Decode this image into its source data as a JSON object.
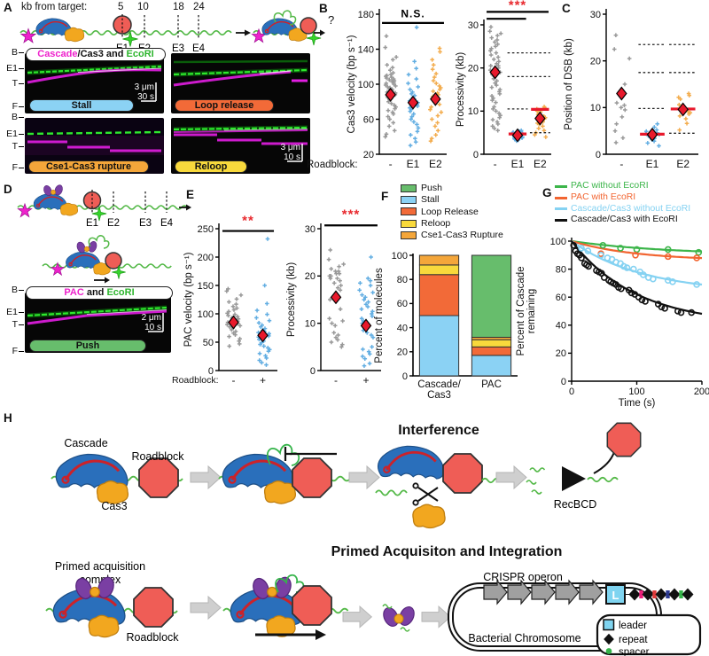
{
  "colors": {
    "magenta": "#ee22cc",
    "ecoRI_green": "#2db52d",
    "dna_green": "#54b948",
    "stall": "#8bd2f4",
    "loop_release": "#f26a38",
    "reloop": "#f8d93c",
    "rupture": "#f4a63a",
    "push": "#67bd6c",
    "mean_red": "#e8192c"
  },
  "panelA": {
    "label": "A",
    "header": "kb from target:",
    "kb_marks": [
      "5",
      "10",
      "18",
      "24"
    ],
    "sites": [
      "E1",
      "E2",
      "E3",
      "E4"
    ],
    "question": "?",
    "kymo_title": {
      "part1": "Cascade",
      "part2": "/Cas3 and ",
      "part3": "EcoRI"
    },
    "row_labels": [
      "B",
      "E1",
      "T",
      "F"
    ],
    "kymos": [
      {
        "name": "Stall"
      },
      {
        "name": "Loop release"
      },
      {
        "name": "Cse1-Cas3 rupture"
      },
      {
        "name": "Reloop"
      }
    ],
    "scale1": {
      "dist": "3 μm",
      "time": "30 s"
    },
    "scale2": {
      "dist": "3 μm",
      "time": "10 s"
    }
  },
  "panelB": {
    "label": "B",
    "roadblock_label": "Roadblock:"
  },
  "panelC": {
    "label": "C"
  },
  "panelD": {
    "label": "D",
    "sites": [
      "E1",
      "E2",
      "E3",
      "E4"
    ],
    "kymo_title": {
      "part1": "PAC",
      "part2": " and ",
      "part3": "EcoRI"
    },
    "row_labels": [
      "B",
      "E1",
      "T",
      "F"
    ],
    "kymo_name": "Push",
    "scale": {
      "dist": "2 μm",
      "time": "10 s"
    }
  },
  "panelE": {
    "label": "E",
    "roadblock_label": "Roadblock:"
  },
  "panelF": {
    "label": "F"
  },
  "panelG": {
    "label": "G"
  },
  "panelH": {
    "label": "H",
    "row1": {
      "cascade": "Cascade",
      "cas3": "Cas3",
      "roadblock": "Roadblock",
      "title": "Interference",
      "recbcd": "RecBCD"
    },
    "row2": {
      "complex1": "Primed acquisition",
      "complex2": "complex",
      "roadblock": "Roadblock",
      "title": "Primed Acquisiton and Integration",
      "operon": "CRISPR operon",
      "chromosome": "Bacterial Chromosome",
      "leader_letter": "L",
      "legend": [
        {
          "label": "leader"
        },
        {
          "label": "repeat"
        },
        {
          "label": "spacer"
        }
      ]
    }
  },
  "chart_data": [
    {
      "id": "cas3_velocity",
      "type": "scatter",
      "ylabel": "Cas3 velocity (bp s⁻¹)",
      "ylim": [
        20,
        180
      ],
      "yticks": [
        20,
        60,
        100,
        140,
        180
      ],
      "categories": [
        "-",
        "E1",
        "E2"
      ],
      "colors": [
        "#999999",
        "#63aee2",
        "#f3ad4f"
      ],
      "mean_color": "#e8192c",
      "groups": [
        [
          155,
          142,
          131,
          128,
          122,
          119,
          116,
          113,
          111,
          110,
          109,
          108,
          107,
          106,
          105,
          104,
          103,
          102,
          101,
          100,
          99,
          98,
          97,
          96,
          95,
          94,
          93,
          92,
          91,
          90,
          89,
          88,
          87,
          86,
          85,
          84,
          82,
          80,
          78,
          76,
          74,
          72,
          70,
          68,
          66,
          63,
          60,
          56,
          52,
          47,
          43,
          40
        ],
        [
          165,
          126,
          118,
          111,
          106,
          101,
          97,
          94,
          91,
          89,
          87,
          85,
          83,
          81,
          79,
          77,
          75,
          73,
          71,
          69,
          66,
          63,
          60,
          57,
          54,
          50,
          46,
          42,
          38,
          34,
          30
        ],
        [
          141,
          137,
          128,
          122,
          117,
          112,
          108,
          104,
          101,
          98,
          96,
          94,
          92,
          90,
          88,
          86,
          84,
          82,
          80,
          77,
          74,
          71,
          68,
          64,
          60,
          56,
          52,
          47,
          42,
          38,
          35
        ]
      ],
      "means": [
        88,
        79,
        83
      ],
      "sig": {
        "text": "N.S.",
        "color": "#000000",
        "font": 12,
        "text_y": 176.5,
        "bars": [
          {
            "from": 0,
            "to": 2,
            "y": 170
          }
        ]
      }
    },
    {
      "id": "processivity_roadblock",
      "type": "scatter",
      "ylabel": "Processivity (kb)",
      "ylim": [
        0,
        30
      ],
      "yticks": [
        0,
        10,
        20,
        30
      ],
      "categories": [
        "-",
        "E1",
        "E2"
      ],
      "colors": [
        "#999999",
        "#63aee2",
        "#f3ad4f"
      ],
      "mean_color": "#e8192c",
      "groups": [
        [
          29.5,
          28.5,
          28,
          27.5,
          27,
          26.5,
          26,
          25.5,
          25,
          24.5,
          24,
          23.5,
          23,
          22.5,
          22,
          21.5,
          21,
          20.5,
          20.5,
          20,
          19.5,
          19,
          18.5,
          18,
          17.5,
          17,
          16.5,
          16,
          15.5,
          15,
          14.5,
          14,
          13.5,
          13,
          12.5,
          12,
          11,
          10.5,
          10,
          9.5,
          9,
          8.5,
          8,
          7.5,
          7,
          6.5,
          6,
          5.5
        ],
        [
          5.5,
          5.3,
          5.2,
          5.1,
          5,
          4.9,
          4.8,
          4.7,
          4.6,
          4.5,
          4.4,
          4.3,
          4.2,
          4.1,
          4,
          3.9,
          3.8,
          3.7,
          3.6,
          3.5,
          3.3,
          3.1
        ],
        [
          11,
          10.8,
          10.5,
          10.3,
          10,
          9.8,
          9.5,
          9.2,
          9,
          8.8,
          8.5,
          8.2,
          8,
          7.8,
          7.5,
          7.2,
          7,
          6.5,
          6,
          5.5,
          5,
          4.5,
          4
        ]
      ],
      "means": [
        19,
        4.4,
        8.3
      ],
      "mean_lines": [
        null,
        4.7,
        10.4
      ],
      "dashes": [
        [],
        [
          23.5,
          18,
          10.5
        ],
        [
          23.5,
          18,
          5
        ]
      ],
      "sig": {
        "text": "***",
        "color": "#e8282d",
        "font": 15,
        "text_y": 33.6,
        "bars": [
          {
            "from": 0,
            "to": 1,
            "y": 31.4
          },
          {
            "from": 0,
            "to": 2,
            "y": 33
          }
        ]
      }
    },
    {
      "id": "dsb_position",
      "type": "scatter",
      "ylabel": "Position of DSB (kb)",
      "ylim": [
        0,
        30
      ],
      "yticks": [
        0,
        10,
        20,
        30
      ],
      "categories": [
        "-",
        "E1",
        "E2"
      ],
      "colors": [
        "#999999",
        "#63aee2",
        "#f3ad4f"
      ],
      "mean_color": "#e8192c",
      "groups": [
        [
          25.5,
          22.5,
          20.5,
          15,
          11,
          10.5,
          10,
          9.5,
          8,
          6.5,
          5,
          3.5,
          2.5
        ],
        [
          6.5,
          5.8,
          5.2,
          4.9,
          4.6,
          4.4,
          4.2,
          4,
          3.8,
          3.6,
          3.4,
          3.1,
          2.8,
          2.4,
          1.8
        ],
        [
          13,
          12.6,
          12.2,
          11.8,
          10.6,
          10.2,
          9.9,
          9.6,
          9.4,
          9.1,
          8.9,
          8.6,
          8.2,
          7.6,
          6.6,
          5.2
        ]
      ],
      "means": [
        13,
        4.2,
        9.6
      ],
      "mean_lines": [
        null,
        4.3,
        9.7
      ],
      "dashes": [
        [],
        [
          23.5,
          17.5,
          9.8
        ],
        [
          23.5,
          17.5,
          4.5
        ]
      ]
    },
    {
      "id": "pac_velocity",
      "type": "scatter",
      "ylabel": "PAC velocity (bp s⁻¹)",
      "ylim": [
        0,
        250
      ],
      "yticks": [
        0,
        50,
        100,
        150,
        200,
        250
      ],
      "categories": [
        "-",
        "+"
      ],
      "colors": [
        "#999999",
        "#63aee2"
      ],
      "mean_color": "#e8192c",
      "groups": [
        [
          144,
          140,
          133,
          126,
          121,
          117,
          113,
          110,
          107,
          104,
          101,
          99,
          97,
          95,
          93,
          91,
          89,
          87,
          85,
          83,
          81,
          79,
          77,
          75,
          72,
          69,
          66,
          63,
          60,
          56,
          52,
          47,
          43
        ],
        [
          232,
          150,
          118,
          106,
          99,
          93,
          88,
          84,
          80,
          77,
          74,
          71,
          69,
          67,
          65,
          63,
          61,
          59,
          57,
          55,
          52,
          49,
          46,
          43,
          40,
          37,
          34,
          30,
          26,
          22,
          18,
          14,
          10
        ]
      ],
      "means": [
        85,
        62
      ],
      "sig": {
        "text": "**",
        "color": "#e8282d",
        "font": 15,
        "text_y": 257,
        "bars": [
          {
            "from": 0,
            "to": 1,
            "y": 246
          }
        ]
      }
    },
    {
      "id": "pac_processivity",
      "type": "scatter",
      "ylabel": "Processivity (kb)",
      "ylim": [
        0,
        30
      ],
      "yticks": [
        0,
        10,
        20,
        30
      ],
      "categories": [
        "-",
        "+"
      ],
      "colors": [
        "#999999",
        "#63aee2"
      ],
      "mean_color": "#e8192c",
      "groups": [
        [
          25.5,
          23.5,
          22.5,
          22,
          21.5,
          21,
          21,
          20.5,
          20.5,
          20,
          20,
          19.5,
          19.5,
          19,
          18.5,
          18,
          17.5,
          17,
          15,
          13,
          11,
          10.5,
          10,
          9.5,
          8,
          7.5,
          7,
          6.5,
          6,
          5.5,
          5
        ],
        [
          24,
          19.5,
          19,
          18.5,
          18,
          17,
          16.5,
          16,
          15.5,
          15,
          14.5,
          14,
          13.5,
          13,
          12.5,
          12,
          11.5,
          11,
          10.5,
          10,
          9.5,
          9,
          8.5,
          8,
          7.5,
          7,
          5,
          4.5,
          4,
          3.5,
          3,
          2.5,
          1.5,
          1
        ]
      ],
      "means": [
        15.5,
        9.5
      ],
      "sig": {
        "text": "***",
        "color": "#e8282d",
        "font": 15,
        "text_y": 32.2,
        "bars": [
          {
            "from": 0,
            "to": 1,
            "y": 30.7
          }
        ]
      }
    },
    {
      "id": "molecule_outcomes",
      "type": "bar",
      "stacked": true,
      "ylabel": "Percent of molecules",
      "ylim": [
        0,
        100
      ],
      "yticks": [
        0,
        20,
        40,
        60,
        80,
        100
      ],
      "categories": [
        [
          "Cascade/",
          "Cas3"
        ],
        [
          "PAC"
        ]
      ],
      "series": [
        {
          "name": "Stall",
          "color": "#8bd2f4",
          "values": [
            50,
            17
          ]
        },
        {
          "name": "Loop Release",
          "color": "#f26a38",
          "values": [
            34,
            7
          ]
        },
        {
          "name": "Reloop",
          "color": "#f8d93c",
          "values": [
            8,
            6
          ]
        },
        {
          "name": "Cse1-Cas3 Rupture",
          "color": "#f4a63a",
          "values": [
            8,
            2
          ]
        },
        {
          "name": "Push",
          "color": "#67bd6c",
          "values": [
            0,
            68
          ]
        }
      ],
      "legend": [
        {
          "label": "Push",
          "color": "#67bd6c"
        },
        {
          "label": "Stall",
          "color": "#8bd2f4"
        },
        {
          "label": "Loop Release",
          "color": "#f26a38"
        },
        {
          "label": "Reloop",
          "color": "#f8d93c"
        },
        {
          "label": "Cse1-Cas3 Rupture",
          "color": "#f4a63a"
        }
      ]
    },
    {
      "id": "cascade_remaining",
      "type": "line",
      "xlabel": "Time (s)",
      "ylabel": [
        "Percent of Cascade",
        "remaining"
      ],
      "xlim": [
        0,
        200
      ],
      "ylim": [
        0,
        100
      ],
      "xticks": [
        0,
        100,
        200
      ],
      "yticks": [
        0,
        20,
        40,
        60,
        80,
        100
      ],
      "series": [
        {
          "name": "PAC without EcoRI",
          "color": "#3cb54a",
          "curve": {
            "y_inf": 90,
            "amp": 10,
            "tau": 150
          },
          "points": [
            [
              48,
              97
            ],
            [
              75,
              95
            ],
            [
              100,
              94
            ],
            [
              148,
              94
            ],
            [
              195,
              92
            ]
          ]
        },
        {
          "name": "PAC with EcoRI",
          "color": "#f26531",
          "curve": {
            "y_inf": 86,
            "amp": 14,
            "tau": 100
          },
          "points": [
            [
              45,
              91
            ],
            [
              98,
              90
            ],
            [
              148,
              89
            ],
            [
              192,
              88
            ]
          ]
        },
        {
          "name": "Cascade/Cas3 without EcoRI",
          "color": "#85d2f2",
          "curve": {
            "y_inf": 63,
            "amp": 37,
            "tau": 110
          },
          "points": [
            [
              15,
              95
            ],
            [
              25,
              93
            ],
            [
              45,
              90
            ],
            [
              55,
              88
            ],
            [
              62,
              87
            ],
            [
              68,
              85
            ],
            [
              75,
              84
            ],
            [
              80,
              82
            ],
            [
              85,
              81
            ],
            [
              95,
              80
            ],
            [
              105,
              78
            ],
            [
              110,
              76
            ],
            [
              118,
              74
            ],
            [
              125,
              73
            ],
            [
              148,
              72
            ],
            [
              155,
              71
            ],
            [
              192,
              69
            ]
          ]
        },
        {
          "name": "Cascade/Cas3 with EcoRI",
          "color": "#111111",
          "curve": {
            "y_inf": 40,
            "amp": 60,
            "tau": 100
          },
          "points": [
            [
              3,
              97
            ],
            [
              6,
              93
            ],
            [
              9,
              91
            ],
            [
              12,
              90
            ],
            [
              15,
              88
            ],
            [
              20,
              84
            ],
            [
              23,
              83
            ],
            [
              26,
              82
            ],
            [
              38,
              79
            ],
            [
              42,
              78
            ],
            [
              46,
              77
            ],
            [
              50,
              74
            ],
            [
              57,
              72
            ],
            [
              60,
              71
            ],
            [
              64,
              70
            ],
            [
              68,
              69
            ],
            [
              72,
              67
            ],
            [
              76,
              66
            ],
            [
              88,
              65
            ],
            [
              92,
              63
            ],
            [
              97,
              62
            ],
            [
              103,
              60
            ],
            [
              108,
              58
            ],
            [
              113,
              57
            ],
            [
              133,
              55
            ],
            [
              138,
              53
            ],
            [
              143,
              52
            ],
            [
              163,
              50
            ],
            [
              168,
              49
            ],
            [
              184,
              49
            ]
          ]
        }
      ]
    }
  ]
}
